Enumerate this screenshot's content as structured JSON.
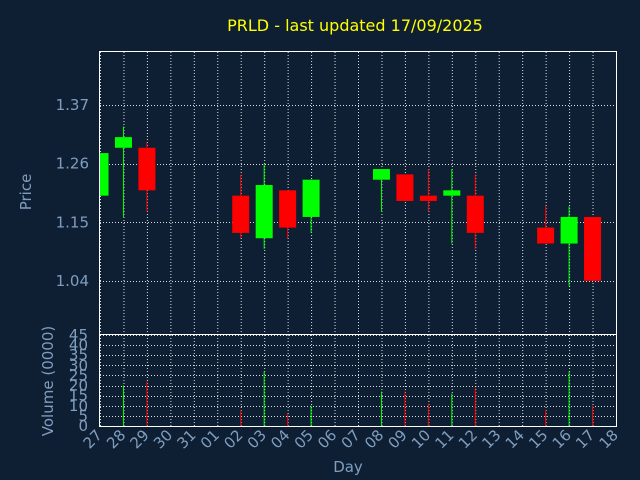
{
  "chart_data": {
    "type": "candlestick",
    "title": "PRLD - last updated 17/09/2025",
    "xlabel": "Day",
    "ylabel": "Price",
    "volume_label": "Volume (0000)",
    "x_ticks": [
      "27",
      "28",
      "29",
      "30",
      "31",
      "01",
      "02",
      "03",
      "04",
      "05",
      "06",
      "07",
      "08",
      "09",
      "10",
      "11",
      "12",
      "13",
      "14",
      "15",
      "16",
      "17",
      "18"
    ],
    "price_ticks": [
      "1.04",
      "1.15",
      "1.26",
      "1.37"
    ],
    "price_tick_values": [
      1.04,
      1.15,
      1.26,
      1.37
    ],
    "volume_ticks": [
      "0",
      "5",
      "10",
      "15",
      "20",
      "25",
      "30",
      "35",
      "40",
      "45"
    ],
    "volume_tick_values": [
      0,
      5,
      10,
      15,
      20,
      25,
      30,
      35,
      40,
      45
    ],
    "price_range": [
      0.94,
      1.47
    ],
    "volume_range": [
      0,
      45
    ],
    "colors": {
      "up": "#00ff00",
      "down": "#ff0000",
      "title": "#ffff00",
      "text": "#7f9ebf",
      "background": "#0f1f33",
      "grid": "#ffffff"
    },
    "candles": [
      {
        "day": "27",
        "open": 1.2,
        "close": 1.28,
        "high": 1.28,
        "low": 1.2,
        "volume": 0
      },
      {
        "day": "28",
        "open": 1.29,
        "close": 1.31,
        "high": 1.33,
        "low": 1.16,
        "volume": 20
      },
      {
        "day": "29",
        "open": 1.29,
        "close": 1.21,
        "high": 1.3,
        "low": 1.17,
        "volume": 22
      },
      {
        "day": "02",
        "open": 1.2,
        "close": 1.13,
        "high": 1.24,
        "low": 1.12,
        "volume": 8
      },
      {
        "day": "03",
        "open": 1.12,
        "close": 1.22,
        "high": 1.26,
        "low": 1.1,
        "volume": 27
      },
      {
        "day": "04",
        "open": 1.21,
        "close": 1.14,
        "high": 1.21,
        "low": 1.12,
        "volume": 6
      },
      {
        "day": "05",
        "open": 1.16,
        "close": 1.23,
        "high": 1.23,
        "low": 1.13,
        "volume": 10
      },
      {
        "day": "08",
        "open": 1.23,
        "close": 1.25,
        "high": 1.25,
        "low": 1.17,
        "volume": 17
      },
      {
        "day": "09",
        "open": 1.24,
        "close": 1.19,
        "high": 1.24,
        "low": 1.19,
        "volume": 17
      },
      {
        "day": "10",
        "open": 1.2,
        "close": 1.19,
        "high": 1.25,
        "low": 1.17,
        "volume": 11
      },
      {
        "day": "11",
        "open": 1.2,
        "close": 1.21,
        "high": 1.25,
        "low": 1.11,
        "volume": 16
      },
      {
        "day": "12",
        "open": 1.2,
        "close": 1.13,
        "high": 1.24,
        "low": 1.1,
        "volume": 19
      },
      {
        "day": "15",
        "open": 1.14,
        "close": 1.11,
        "high": 1.18,
        "low": 1.11,
        "volume": 8
      },
      {
        "day": "16",
        "open": 1.11,
        "close": 1.16,
        "high": 1.18,
        "low": 1.03,
        "volume": 27
      },
      {
        "day": "17",
        "open": 1.16,
        "close": 1.04,
        "high": 1.16,
        "low": 1.04,
        "volume": 10
      }
    ]
  }
}
